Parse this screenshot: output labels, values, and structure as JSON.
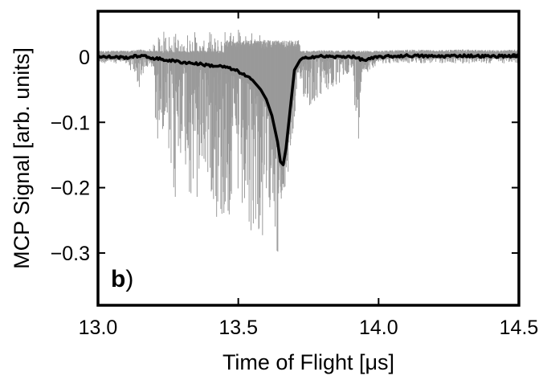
{
  "chart_data": {
    "type": "line",
    "title": "",
    "panel_label": "b",
    "panel_label_suffix": ")",
    "xlabel": "Time of Flight [μs]",
    "ylabel": "MCP Signal [arb. units]",
    "xlim": [
      13.0,
      14.5
    ],
    "ylim": [
      -0.38,
      0.07
    ],
    "xticks": [
      13.0,
      13.5,
      14.0,
      14.5
    ],
    "xtick_labels": [
      "13.0",
      "13.5",
      "14.0",
      "14.5"
    ],
    "yticks": [
      0,
      -0.1,
      -0.2,
      -0.3
    ],
    "ytick_labels": [
      "0",
      "−0.1",
      "−0.2",
      "−0.3"
    ],
    "grid": false,
    "legend": "none",
    "series": [
      {
        "role": "mean",
        "color": "#000000",
        "x": [
          13.0,
          13.05,
          13.1,
          13.15,
          13.2,
          13.25,
          13.3,
          13.35,
          13.4,
          13.45,
          13.5,
          13.55,
          13.58,
          13.6,
          13.62,
          13.64,
          13.65,
          13.66,
          13.67,
          13.68,
          13.69,
          13.7,
          13.72,
          13.75,
          13.8,
          13.85,
          13.9,
          13.95,
          14.0,
          14.1,
          14.2,
          14.3,
          14.4,
          14.5
        ],
        "y": [
          0.0,
          0.0,
          -0.001,
          0.002,
          -0.002,
          -0.005,
          -0.008,
          -0.01,
          -0.013,
          -0.015,
          -0.022,
          -0.035,
          -0.05,
          -0.065,
          -0.09,
          -0.13,
          -0.16,
          -0.165,
          -0.14,
          -0.1,
          -0.06,
          -0.02,
          -0.005,
          0.0,
          0.001,
          0.0,
          0.001,
          -0.005,
          0.0,
          0.002,
          0.001,
          0.002,
          0.001,
          0.002
        ]
      },
      {
        "role": "individual-traces",
        "color": "#9a9a9a",
        "x": [
          13.0,
          13.05,
          13.1,
          13.15,
          13.16,
          13.17,
          13.2,
          13.21,
          13.22,
          13.25,
          13.26,
          13.28,
          13.3,
          13.32,
          13.35,
          13.37,
          13.4,
          13.42,
          13.45,
          13.47,
          13.5,
          13.52,
          13.54,
          13.56,
          13.58,
          13.6,
          13.62,
          13.64,
          13.66,
          13.68,
          13.7,
          13.72,
          13.75,
          13.8,
          13.85,
          13.9,
          13.93,
          13.94,
          14.0,
          14.1,
          14.2,
          14.3,
          14.4,
          14.5
        ],
        "y_min": [
          -0.01,
          -0.01,
          -0.01,
          -0.05,
          -0.03,
          -0.02,
          -0.02,
          -0.19,
          -0.08,
          -0.17,
          -0.22,
          -0.25,
          -0.12,
          -0.21,
          -0.26,
          -0.18,
          -0.2,
          -0.25,
          -0.27,
          -0.25,
          -0.24,
          -0.27,
          -0.32,
          -0.25,
          -0.31,
          -0.28,
          -0.2,
          -0.32,
          -0.22,
          -0.18,
          -0.1,
          -0.05,
          -0.08,
          -0.06,
          -0.05,
          -0.02,
          -0.13,
          -0.03,
          -0.01,
          -0.01,
          -0.01,
          -0.01,
          -0.01,
          -0.01
        ],
        "y_max": [
          0.01,
          0.01,
          0.01,
          0.01,
          0.01,
          0.01,
          0.02,
          0.02,
          0.04,
          0.04,
          0.03,
          0.04,
          0.02,
          0.04,
          0.04,
          0.02,
          0.04,
          0.03,
          0.04,
          0.05,
          0.05,
          0.04,
          0.06,
          0.04,
          0.04,
          0.04,
          0.03,
          0.02,
          0.01,
          0.01,
          0.01,
          0.01,
          0.01,
          0.01,
          0.01,
          0.01,
          0.01,
          0.01,
          0.01,
          0.01,
          0.01,
          0.01,
          0.01,
          0.01
        ]
      }
    ]
  }
}
